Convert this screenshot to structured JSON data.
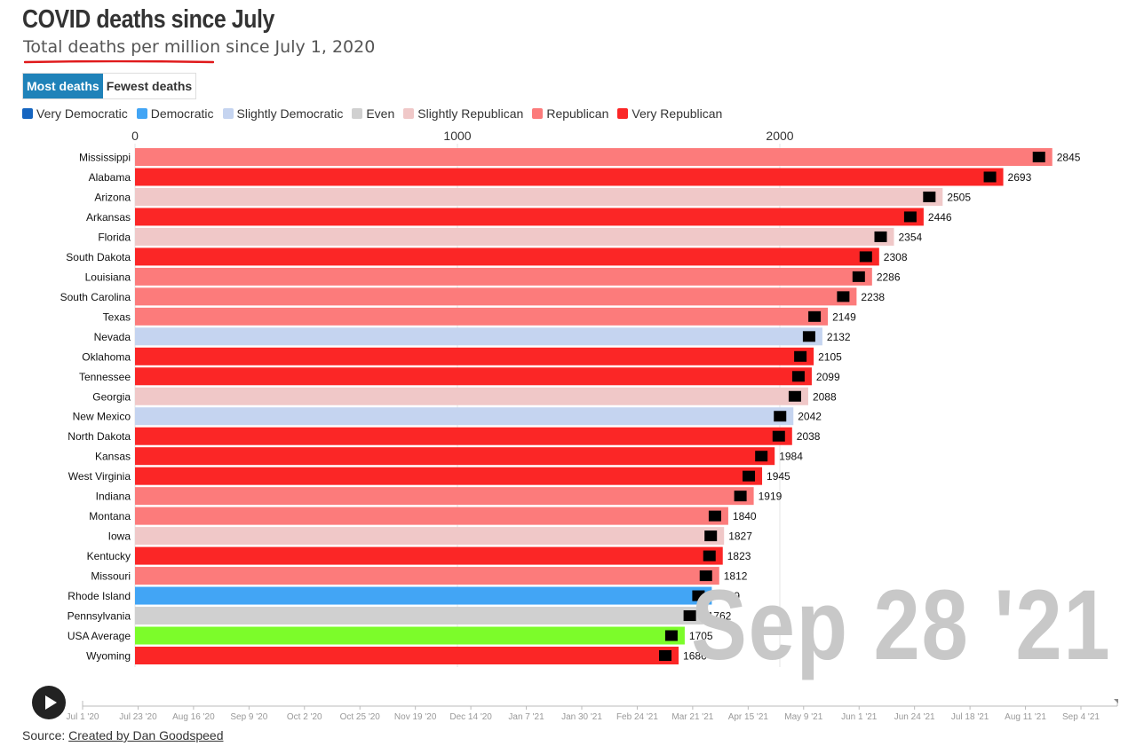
{
  "header": {
    "title": "COVID deaths since July",
    "subtitle": "Total deaths per million since July 1, 2020"
  },
  "mode_buttons": {
    "most_label": "Most deaths",
    "fewest_label": "Fewest deaths"
  },
  "legend": [
    {
      "label": "Very Democratic",
      "color": "#1565c0"
    },
    {
      "label": "Democratic",
      "color": "#42a5f5"
    },
    {
      "label": "Slightly Democratic",
      "color": "#c5d4f0"
    },
    {
      "label": "Even",
      "color": "#d0d0d0"
    },
    {
      "label": "Slightly Republican",
      "color": "#f0c8c8"
    },
    {
      "label": "Republican",
      "color": "#fc7b7b"
    },
    {
      "label": "Very Republican",
      "color": "#fb2626"
    }
  ],
  "lean_colors": {
    "Very Democratic": "#1565c0",
    "Democratic": "#42a5f5",
    "Slightly Democratic": "#c5d4f0",
    "Even": "#d0d0d0",
    "Slightly Republican": "#f0c8c8",
    "Republican": "#fc7b7b",
    "Very Republican": "#fb2626",
    "Average": "#7cfc2a"
  },
  "chart_data": {
    "type": "bar",
    "orientation": "horizontal",
    "title": "COVID deaths since July",
    "subtitle": "Total deaths per million since July 1, 2020",
    "x_ticks": [
      0,
      1000,
      2000
    ],
    "xlim": [
      0,
      3000
    ],
    "grid": true,
    "categories": [
      "Mississippi",
      "Alabama",
      "Arizona",
      "Arkansas",
      "Florida",
      "South Dakota",
      "Louisiana",
      "South Carolina",
      "Texas",
      "Nevada",
      "Oklahoma",
      "Tennessee",
      "Georgia",
      "New Mexico",
      "North Dakota",
      "Kansas",
      "West Virginia",
      "Indiana",
      "Montana",
      "Iowa",
      "Kentucky",
      "Missouri",
      "Rhode Island",
      "Pennsylvania",
      "USA Average",
      "Wyoming"
    ],
    "values": [
      2845,
      2693,
      2505,
      2446,
      2354,
      2308,
      2286,
      2238,
      2149,
      2132,
      2105,
      2099,
      2088,
      2042,
      2038,
      1984,
      1945,
      1919,
      1840,
      1827,
      1823,
      1812,
      1789,
      1762,
      1705,
      1686
    ],
    "lean": [
      "Republican",
      "Very Republican",
      "Slightly Republican",
      "Very Republican",
      "Slightly Republican",
      "Very Republican",
      "Republican",
      "Republican",
      "Republican",
      "Slightly Democratic",
      "Very Republican",
      "Very Republican",
      "Slightly Republican",
      "Slightly Democratic",
      "Very Republican",
      "Very Republican",
      "Very Republican",
      "Republican",
      "Republican",
      "Slightly Republican",
      "Very Republican",
      "Republican",
      "Democratic",
      "Even",
      "Average",
      "Very Republican"
    ],
    "current_date": "Sep 28 '21"
  },
  "timeline": {
    "labels": [
      "Jul 1 '20",
      "Jul 23 '20",
      "Aug 16 '20",
      "Sep 9 '20",
      "Oct 2 '20",
      "Oct 25 '20",
      "Nov 19 '20",
      "Dec 14 '20",
      "Jan 7 '21",
      "Jan 30 '21",
      "Feb 24 '21",
      "Mar 21 '21",
      "Apr 15 '21",
      "May 9 '21",
      "Jun 1 '21",
      "Jun 24 '21",
      "Jul 18 '21",
      "Aug 11 '21",
      "Sep 4 '21"
    ],
    "progress": 1.0
  },
  "source": {
    "prefix": "Source: ",
    "link_text": "Created by Dan Goodspeed"
  }
}
